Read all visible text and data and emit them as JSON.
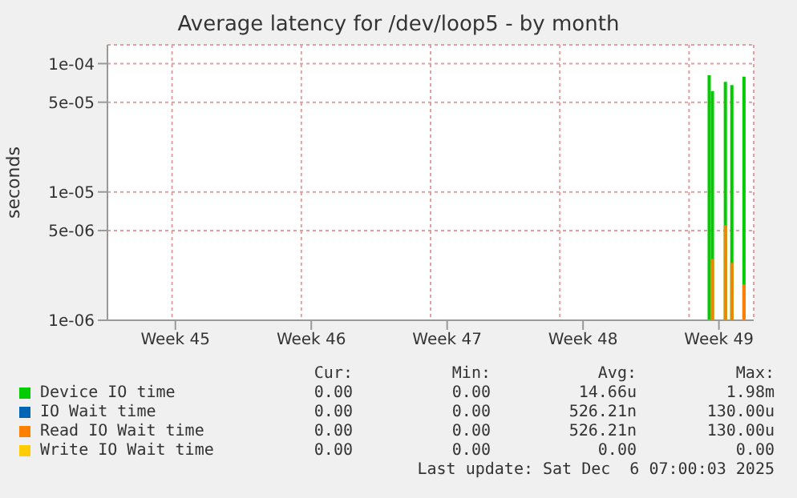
{
  "chart_data": {
    "type": "bar",
    "title": "Average latency for /dev/loop5 - by month",
    "ylabel": "seconds",
    "log": "y",
    "grid": true,
    "legend": "bottom",
    "ylim": [
      1e-06,
      0.00014
    ],
    "yticks": [
      {
        "value": 1e-06,
        "label": "1e-06"
      },
      {
        "value": 5e-06,
        "label": "5e-06"
      },
      {
        "value": 1e-05,
        "label": "1e-05"
      },
      {
        "value": 5e-05,
        "label": "5e-05"
      },
      {
        "value": 0.0001,
        "label": "1e-04"
      }
    ],
    "xlim": [
      "2025-11-03T00:00",
      "2025-12-06T07:00"
    ],
    "xticks": [
      {
        "value": "2025-11-06T12:00",
        "label": "Week 45"
      },
      {
        "value": "2025-11-13T12:00",
        "label": "Week 46"
      },
      {
        "value": "2025-11-20T12:00",
        "label": "Week 47"
      },
      {
        "value": "2025-11-27T12:00",
        "label": "Week 48"
      },
      {
        "value": "2025-12-04T12:00",
        "label": "Week 49"
      }
    ],
    "series": [
      {
        "name": "Device IO time",
        "color": "#00cc00",
        "x": [
          "2025-12-04T00:00",
          "2025-12-04T04:00",
          "2025-12-04T20:00",
          "2025-12-05T04:00",
          "2025-12-05T19:00"
        ],
        "values": [
          8.1e-05,
          6.1e-05,
          7.2e-05,
          6.8e-05,
          7.9e-05
        ]
      },
      {
        "name": "IO Wait time",
        "color": "#0066b3"
      },
      {
        "name": "Read IO Wait time",
        "color": "#ff8000",
        "x": [
          "2025-12-04T04:00",
          "2025-12-04T20:00",
          "2025-12-05T04:00",
          "2025-12-05T19:00"
        ],
        "values": [
          3e-06,
          5.5e-06,
          2.8e-06,
          1.9e-06
        ]
      },
      {
        "name": "Write IO Wait time",
        "color": "#ffcc00"
      }
    ],
    "annotations": [
      "Cur:",
      "Min:",
      "Avg:",
      "Max:",
      "0.00",
      "0.00",
      "14.66u",
      "1.98m",
      "0.00",
      "0.00",
      "526.21n",
      "130.00u",
      "0.00",
      "0.00",
      "526.21n",
      "130.00u",
      "0.00",
      "0.00",
      "0.00",
      "0.00",
      "Last update: Sat Dec  6 07:00:03 2025"
    ]
  }
}
